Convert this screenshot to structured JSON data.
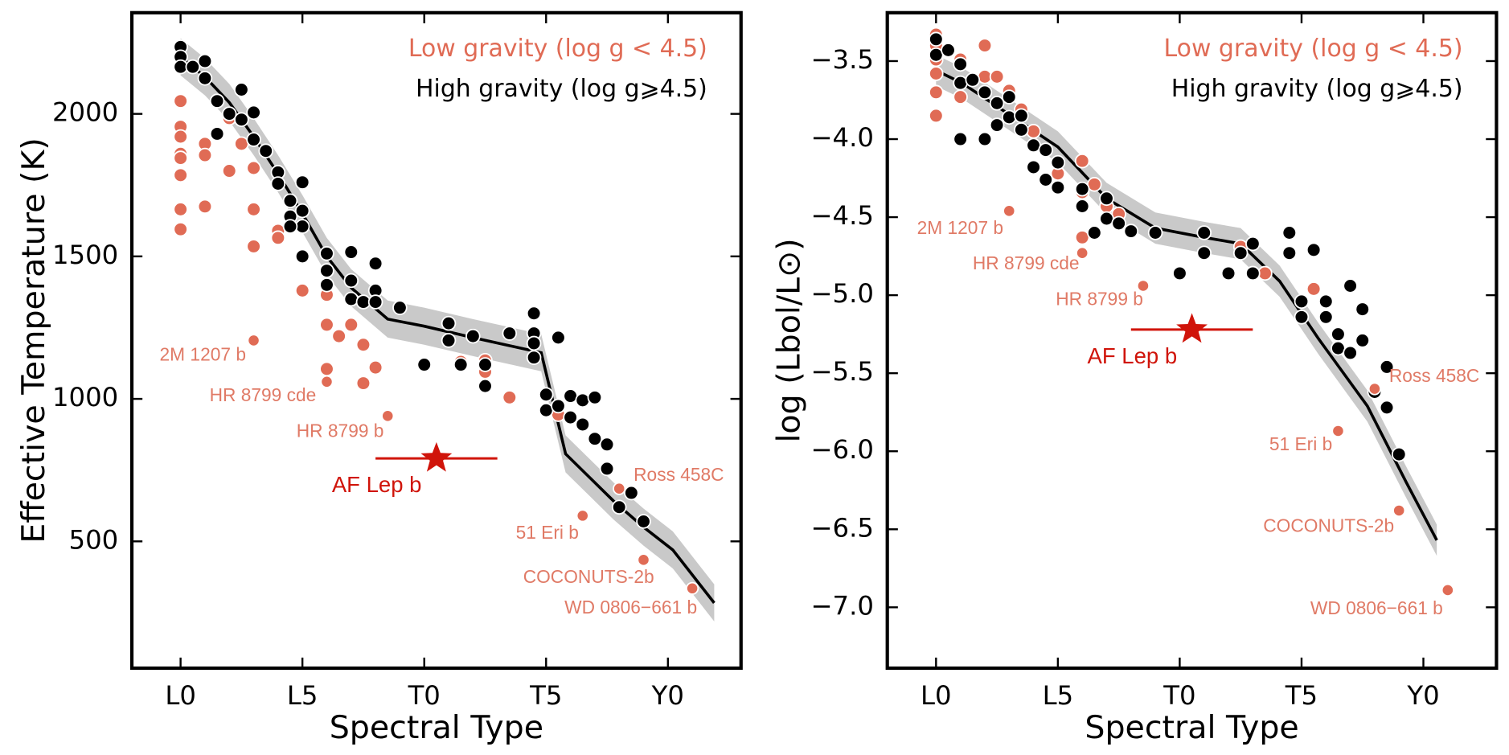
{
  "chart_data": [
    {
      "type": "scatter",
      "xlabel": "Spectral Type",
      "ylabel": "Effective Temperature (K)",
      "xlim": [
        -2,
        23
      ],
      "xticks": [
        {
          "value": 0,
          "label": "L0"
        },
        {
          "value": 5,
          "label": "L5"
        },
        {
          "value": 10,
          "label": "T0"
        },
        {
          "value": 15,
          "label": "T5"
        },
        {
          "value": 20,
          "label": "Y0"
        }
      ],
      "ylim": [
        55,
        2355
      ],
      "yticks": [
        500,
        1000,
        1500,
        2000
      ],
      "series": [
        {
          "name": "Low gravity (log g < 4.5)",
          "color": "#e06b55",
          "x": [
            0,
            0,
            0,
            0,
            0,
            0,
            0,
            0,
            1,
            1,
            1,
            2,
            2,
            2.5,
            3,
            3,
            3,
            4,
            4,
            5,
            6,
            6,
            6.5,
            7,
            7.5,
            6,
            7.5,
            8,
            11.5,
            12.5,
            12.5,
            13.5,
            15.5
          ],
          "values": [
            2045,
            1955,
            1920,
            1860,
            1845,
            1785,
            1665,
            1595,
            1895,
            1855,
            1675,
            1985,
            1800,
            1895,
            1810,
            1665,
            1535,
            1590,
            1565,
            1380,
            1365,
            1260,
            1220,
            1260,
            1190,
            1105,
            1055,
            1110,
            1130,
            1135,
            1095,
            1005,
            945
          ]
        },
        {
          "name": "High gravity (log g⩾4.5)",
          "color": "#000000",
          "x": [
            0,
            0,
            0,
            0.5,
            1,
            1,
            1.5,
            1.5,
            2,
            2.5,
            2.5,
            3,
            3,
            3.5,
            4,
            4,
            4.5,
            4.5,
            5,
            5,
            5,
            4.5,
            5,
            6,
            6,
            6,
            7,
            7,
            7,
            7.5,
            8,
            8,
            8,
            9,
            10,
            11,
            11,
            12,
            11.5,
            12.5,
            12.5,
            13.5,
            14.5,
            14.5,
            14.5,
            14.5,
            15.5,
            15,
            15,
            15.5,
            16,
            16,
            16.5,
            16.5,
            17,
            17,
            17.5,
            17.5,
            18,
            18.5,
            19
          ],
          "values": [
            2235,
            2200,
            2165,
            2165,
            2185,
            2125,
            2045,
            1930,
            2000,
            2085,
            1980,
            2005,
            1910,
            1870,
            1795,
            1755,
            1695,
            1640,
            1760,
            1660,
            1605,
            1605,
            1500,
            1510,
            1450,
            1400,
            1515,
            1415,
            1350,
            1340,
            1475,
            1380,
            1340,
            1320,
            1120,
            1265,
            1205,
            1220,
            1120,
            1120,
            1045,
            1230,
            1300,
            1230,
            1195,
            1145,
            1215,
            1015,
            960,
            975,
            1010,
            935,
            995,
            910,
            1005,
            860,
            840,
            755,
            620,
            670,
            570
          ]
        }
      ],
      "fit": {
        "color": "#000000",
        "band_color": "#c9c9c9",
        "x": [
          0,
          1,
          2,
          3,
          4,
          5,
          6,
          7,
          8.5,
          10,
          12,
          14.8,
          15.8,
          16.8,
          17.8,
          19,
          20.2,
          21.9
        ],
        "y": [
          2200,
          2130,
          2040,
          1920,
          1790,
          1650,
          1500,
          1390,
          1280,
          1255,
          1215,
          1162,
          807,
          723,
          639,
          550,
          470,
          284
        ],
        "upper": [
          2265,
          2195,
          2105,
          1985,
          1855,
          1715,
          1565,
          1455,
          1345,
          1320,
          1280,
          1227,
          872,
          788,
          704,
          615,
          535,
          349
        ],
        "lower": [
          2135,
          2065,
          1975,
          1855,
          1725,
          1585,
          1435,
          1325,
          1215,
          1190,
          1150,
          1097,
          742,
          658,
          574,
          485,
          405,
          219
        ]
      },
      "annotation_color": "#e07a66",
      "annotations": [
        {
          "label": "2M 1207 b",
          "x": 3,
          "y": 1205
        },
        {
          "label": "HR 8799 cde",
          "x": 6,
          "y": 1060
        },
        {
          "label": "HR 8799 b",
          "x": 8.5,
          "y": 940
        },
        {
          "label": "Ross 458C",
          "x": 18,
          "y": 685
        },
        {
          "label": "51 Eri b",
          "x": 16.5,
          "y": 590
        },
        {
          "label": "COCONUTS-2b",
          "x": 19,
          "y": 435
        },
        {
          "label": "WD 0806−661 b",
          "x": 21,
          "y": 335
        }
      ],
      "highlight": {
        "label": "AF Lep b",
        "x": 10.5,
        "y": 791,
        "xerr": 2.5,
        "color": "#d0140a"
      }
    },
    {
      "type": "scatter",
      "xlabel": "Spectral Type",
      "ylabel": "log (Lbol/L⊙)",
      "xlim": [
        -2,
        23
      ],
      "xticks": [
        {
          "value": 0,
          "label": "L0"
        },
        {
          "value": 5,
          "label": "L5"
        },
        {
          "value": 10,
          "label": "T0"
        },
        {
          "value": 15,
          "label": "T5"
        },
        {
          "value": 20,
          "label": "Y0"
        }
      ],
      "ylim": [
        -7.39,
        -3.19
      ],
      "yticks": [
        {
          "value": -3.5,
          "label": "−3.5"
        },
        {
          "value": -4.0,
          "label": "−4.0"
        },
        {
          "value": -4.5,
          "label": "−4.5"
        },
        {
          "value": -5.0,
          "label": "−5.0"
        },
        {
          "value": -5.5,
          "label": "−5.5"
        },
        {
          "value": -6.0,
          "label": "−6.0"
        },
        {
          "value": -6.5,
          "label": "−6.5"
        },
        {
          "value": -7.0,
          "label": "−7.0"
        }
      ],
      "series": [
        {
          "name": "Low gravity (log g < 4.5)",
          "color": "#e06b55",
          "x": [
            0,
            0,
            0,
            0,
            0,
            0,
            1,
            1,
            2,
            2,
            2.5,
            3,
            3.5,
            4,
            5,
            6,
            6,
            6.5,
            7,
            7.5,
            6,
            12.5,
            13.5,
            15.5
          ],
          "values": [
            -3.33,
            -3.4,
            -3.49,
            -3.58,
            -3.7,
            -3.85,
            -3.49,
            -3.73,
            -3.4,
            -3.6,
            -3.6,
            -3.69,
            -3.81,
            -3.95,
            -4.22,
            -4.14,
            -4.34,
            -4.29,
            -4.43,
            -4.48,
            -4.63,
            -4.69,
            -4.86,
            -4.96
          ]
        },
        {
          "name": "High gravity (log g⩾4.5)",
          "color": "#000000",
          "x": [
            0,
            0,
            0.5,
            1,
            1,
            1,
            1.5,
            2,
            2,
            2.5,
            2.5,
            3,
            3,
            3.5,
            3.5,
            4,
            4,
            4.5,
            4.5,
            5,
            5,
            6,
            6,
            6.5,
            7,
            7,
            7.5,
            8,
            9,
            10,
            11,
            11,
            12,
            12.5,
            13,
            13,
            14.5,
            14.5,
            15.5,
            15,
            15,
            16,
            16,
            16.5,
            16.5,
            17,
            17,
            17.5,
            17.5,
            18,
            18.5,
            18.5,
            19
          ],
          "values": [
            -3.36,
            -3.46,
            -3.43,
            -3.52,
            -3.64,
            -4.0,
            -3.62,
            -3.7,
            -4.0,
            -3.77,
            -3.91,
            -3.73,
            -3.86,
            -3.85,
            -3.94,
            -4.04,
            -4.18,
            -4.07,
            -4.26,
            -4.15,
            -4.31,
            -4.32,
            -4.43,
            -4.6,
            -4.38,
            -4.51,
            -4.54,
            -4.59,
            -4.6,
            -4.86,
            -4.6,
            -4.73,
            -4.86,
            -4.73,
            -4.67,
            -4.86,
            -4.6,
            -4.73,
            -4.71,
            -5.04,
            -5.14,
            -5.04,
            -5.14,
            -5.25,
            -5.34,
            -4.94,
            -5.37,
            -5.09,
            -5.29,
            -5.62,
            -5.46,
            -5.72,
            -6.02
          ]
        }
      ],
      "fit": {
        "color": "#000000",
        "band_color": "#c9c9c9",
        "x": [
          0,
          1.06,
          5,
          7,
          9,
          11,
          12.5,
          14.1,
          15.7,
          17.7,
          19.3,
          20.55
        ],
        "y": [
          -3.56,
          -3.64,
          -4.05,
          -4.38,
          -4.57,
          -4.63,
          -4.67,
          -4.91,
          -5.28,
          -5.71,
          -6.2,
          -6.57
        ],
        "upper": [
          -3.46,
          -3.54,
          -3.95,
          -4.28,
          -4.47,
          -4.53,
          -4.57,
          -4.81,
          -5.18,
          -5.61,
          -6.1,
          -6.47
        ],
        "lower": [
          -3.66,
          -3.74,
          -4.15,
          -4.48,
          -4.67,
          -4.73,
          -4.77,
          -5.01,
          -5.38,
          -5.81,
          -6.3,
          -6.67
        ]
      },
      "annotation_color": "#e07a66",
      "annotations": [
        {
          "label": "2M 1207 b",
          "x": 3,
          "y": -4.46
        },
        {
          "label": "HR 8799 cde",
          "x": 6,
          "y": -4.73
        },
        {
          "label": "HR 8799 b",
          "x": 8.5,
          "y": -4.94
        },
        {
          "label": "Ross 458C",
          "x": 18,
          "y": -5.6
        },
        {
          "label": "51 Eri b",
          "x": 16.5,
          "y": -5.87
        },
        {
          "label": "COCONUTS-2b",
          "x": 19,
          "y": -6.38
        },
        {
          "label": "WD 0806−661 b",
          "x": 21,
          "y": -6.89
        }
      ],
      "highlight": {
        "label": "AF Lep b",
        "x": 10.5,
        "y": -5.22,
        "xerr": 2.5,
        "color": "#d0140a"
      }
    }
  ]
}
